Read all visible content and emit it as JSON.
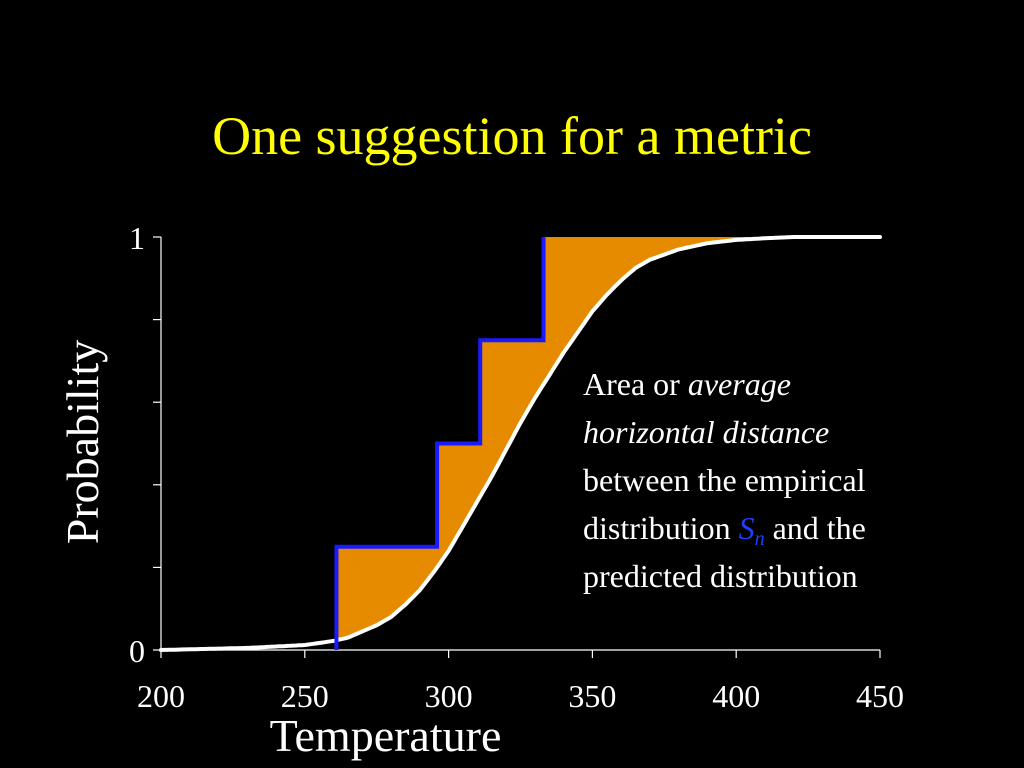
{
  "slide": {
    "title": "One suggestion for a metric",
    "background_color": "#000000",
    "title_color": "#ffff00"
  },
  "annotation": {
    "line1_prefix": "Area or ",
    "line1_italic": "average",
    "line2_italic": "horizontal distance",
    "line3": "between the empirical",
    "line4_prefix": "distribution ",
    "symbol": "S",
    "symbol_subscript": "n",
    "line4_suffix": " and the",
    "line5": "predicted distribution"
  },
  "chart_data": {
    "type": "line",
    "title": "",
    "xlabel": "Temperature",
    "ylabel": "Probability",
    "xlim": [
      200,
      450
    ],
    "ylim": [
      0,
      1
    ],
    "x_ticks": [
      200,
      250,
      300,
      350,
      400,
      450
    ],
    "x_tick_labels": [
      "200",
      "250",
      "300",
      "350",
      "400",
      "450"
    ],
    "y_ticks": [
      0,
      0.2,
      0.4,
      0.6,
      0.8,
      1
    ],
    "y_tick_labels": [
      "0",
      "",
      "",
      "",
      "",
      "1"
    ],
    "grid": false,
    "legend": "none",
    "series": [
      {
        "role": "predicted",
        "color": "#ffffff",
        "x": [
          200,
          230,
          250,
          260,
          265,
          270,
          275,
          280,
          285,
          290,
          295,
          300,
          305,
          310,
          315,
          320,
          325,
          330,
          335,
          340,
          345,
          350,
          355,
          360,
          365,
          370,
          380,
          390,
          400,
          410,
          420,
          430,
          440,
          450
        ],
        "y": [
          0.0,
          0.005,
          0.012,
          0.022,
          0.03,
          0.045,
          0.06,
          0.08,
          0.11,
          0.145,
          0.19,
          0.24,
          0.3,
          0.36,
          0.42,
          0.485,
          0.55,
          0.61,
          0.665,
          0.72,
          0.77,
          0.82,
          0.86,
          0.895,
          0.925,
          0.945,
          0.97,
          0.985,
          0.993,
          0.997,
          1.0,
          1.0,
          1.0,
          1.0
        ]
      },
      {
        "role": "empirical",
        "step": true,
        "color": "#1a1aff",
        "x": [
          261,
          296,
          311,
          333
        ],
        "y": [
          0.25,
          0.5,
          0.75,
          1.0
        ]
      }
    ],
    "fill_between_color": "#e68a00"
  }
}
